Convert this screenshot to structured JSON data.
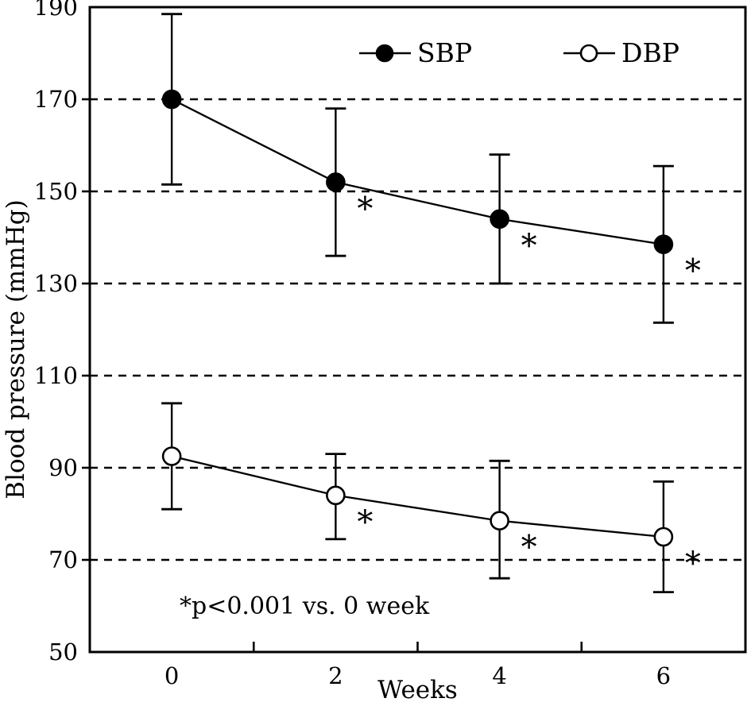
{
  "chart_data": {
    "type": "line",
    "title": "",
    "xlabel": "Weeks",
    "ylabel": "Blood pressure (mmHg)",
    "x": [
      0,
      2,
      4,
      6
    ],
    "xtick_labels": [
      "0",
      "2",
      "4",
      "6"
    ],
    "yticks": [
      50,
      70,
      90,
      110,
      130,
      150,
      170,
      190
    ],
    "ylim": [
      50,
      190
    ],
    "grid": "horizontal-dashed",
    "legend_position": "top-inside",
    "annotation": "*p<0.001 vs. 0 week",
    "significance_marker": "*",
    "colors": {
      "foreground": "#000000",
      "background": "#ffffff"
    },
    "series": [
      {
        "name": "SBP",
        "marker": "filled-circle",
        "color": "#000000",
        "values": [
          170,
          152,
          144,
          138.5
        ],
        "error_upper": [
          188.5,
          168,
          158,
          155.5
        ],
        "error_lower": [
          151.5,
          136,
          130,
          121.5
        ],
        "significant": [
          false,
          true,
          true,
          true
        ]
      },
      {
        "name": "DBP",
        "marker": "open-circle",
        "color": "#000000",
        "values": [
          92.5,
          84,
          78.5,
          75
        ],
        "error_upper": [
          104,
          93,
          91.5,
          87
        ],
        "error_lower": [
          81,
          74.5,
          66,
          63
        ],
        "significant": [
          false,
          true,
          true,
          true
        ]
      }
    ]
  }
}
